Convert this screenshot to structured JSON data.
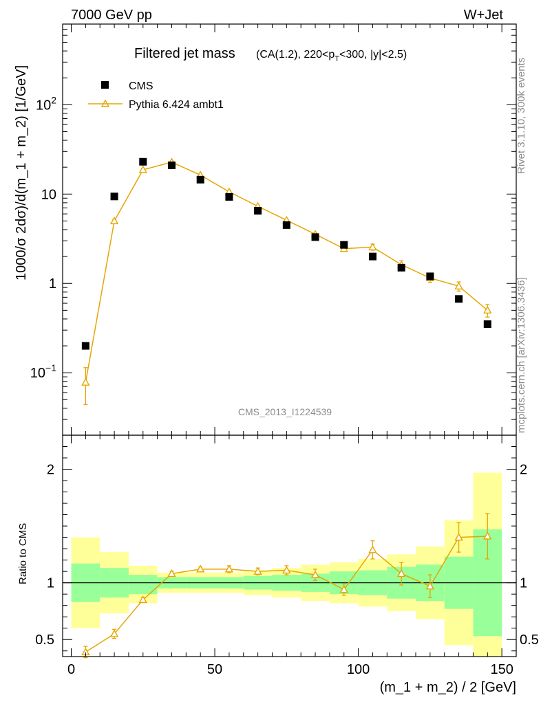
{
  "header": {
    "left": "7000 GeV pp",
    "right": "W+Jet"
  },
  "side_labels": {
    "rivet": "Rivet 3.1.10,  300k events",
    "mcplots": "mcplots.cern.ch [arXiv:1306.3436]"
  },
  "watermark": "CMS_2013_I1224539",
  "colors": {
    "mc": "#e6a500",
    "band_inner": "#99ff99",
    "band_outer": "#ffff99",
    "data": "#000000"
  },
  "chart_data": [
    {
      "type": "scatter",
      "panel": "main",
      "title_main": "Filtered jet mass",
      "title_sub": "(CA(1.2), 220<p_T<300, |y|<2.5)",
      "ylabel": "1000/σ 2dσ)/d(m_1 + m_2) [1/GeV]",
      "xlim": [
        -3,
        155
      ],
      "ylim": [
        0.02,
        800
      ],
      "yscale": "log",
      "y_tick_labels": [
        "10^-1",
        "1",
        "10",
        "10^2"
      ],
      "legend": {
        "placement": "top-left",
        "entries": [
          "CMS",
          "Pythia 6.424 ambt1"
        ]
      },
      "series": [
        {
          "name": "CMS",
          "marker": "square",
          "x": [
            5,
            15,
            25,
            35,
            45,
            55,
            65,
            75,
            85,
            95,
            105,
            115,
            125,
            135,
            145
          ],
          "y": [
            0.2,
            9.4,
            23,
            21,
            14.5,
            9.3,
            6.5,
            4.5,
            3.3,
            2.7,
            2.0,
            1.5,
            1.2,
            0.67,
            0.35
          ]
        },
        {
          "name": "Pythia 6.424 ambt1",
          "marker": "open-triangle",
          "x": [
            5,
            15,
            25,
            35,
            45,
            55,
            65,
            75,
            85,
            95,
            105,
            115,
            125,
            135,
            145
          ],
          "y": [
            0.078,
            5.0,
            18.7,
            22.8,
            16.3,
            10.6,
            7.3,
            5.1,
            3.55,
            2.45,
            2.55,
            1.62,
            1.15,
            0.93,
            0.5
          ],
          "yerr_low": [
            0.034,
            0.2,
            0.5,
            0.6,
            0.5,
            0.3,
            0.2,
            0.15,
            0.12,
            0.12,
            0.2,
            0.17,
            0.12,
            0.11,
            0.08
          ],
          "yerr_high": [
            0.036,
            0.2,
            0.5,
            0.6,
            0.5,
            0.3,
            0.2,
            0.15,
            0.12,
            0.12,
            0.2,
            0.17,
            0.12,
            0.11,
            0.08
          ]
        }
      ]
    },
    {
      "type": "line",
      "panel": "ratio",
      "ylabel": "Ratio to CMS",
      "xlabel": "(m_1 + m_2) / 2 [GeV]",
      "xlim": [
        -3,
        155
      ],
      "ylim": [
        0.35,
        2.3
      ],
      "x_ticks": [
        0,
        50,
        100,
        150
      ],
      "y_ticks": [
        0.5,
        1,
        2
      ],
      "bins": [
        [
          0,
          10
        ],
        [
          10,
          20
        ],
        [
          20,
          30
        ],
        [
          30,
          40
        ],
        [
          40,
          50
        ],
        [
          50,
          60
        ],
        [
          60,
          70
        ],
        [
          70,
          80
        ],
        [
          80,
          90
        ],
        [
          90,
          100
        ],
        [
          100,
          110
        ],
        [
          110,
          120
        ],
        [
          120,
          130
        ],
        [
          130,
          140
        ],
        [
          140,
          150
        ]
      ],
      "band_inner": {
        "low": [
          0.83,
          0.87,
          0.9,
          0.95,
          0.95,
          0.95,
          0.94,
          0.93,
          0.92,
          0.9,
          0.89,
          0.86,
          0.84,
          0.77,
          0.53
        ],
        "high": [
          1.17,
          1.13,
          1.07,
          1.05,
          1.05,
          1.05,
          1.06,
          1.07,
          1.08,
          1.1,
          1.11,
          1.14,
          1.16,
          1.23,
          1.47
        ]
      },
      "band_outer": {
        "low": [
          0.6,
          0.73,
          0.82,
          0.91,
          0.91,
          0.91,
          0.89,
          0.87,
          0.84,
          0.82,
          0.79,
          0.75,
          0.68,
          0.45,
          0.3
        ],
        "high": [
          1.4,
          1.27,
          1.15,
          1.09,
          1.09,
          1.09,
          1.11,
          1.13,
          1.16,
          1.18,
          1.21,
          1.25,
          1.32,
          1.55,
          1.97
        ]
      },
      "series": [
        {
          "name": "Pythia 6.424 ambt1",
          "x": [
            5,
            15,
            25,
            35,
            45,
            55,
            65,
            75,
            85,
            95,
            105,
            115,
            125,
            135,
            145
          ],
          "y": [
            0.39,
            0.55,
            0.85,
            1.08,
            1.12,
            1.12,
            1.1,
            1.11,
            1.07,
            0.94,
            1.29,
            1.08,
            0.97,
            1.4,
            1.41
          ],
          "yerr": [
            0.05,
            0.04,
            0.02,
            0.02,
            0.02,
            0.03,
            0.03,
            0.04,
            0.05,
            0.05,
            0.08,
            0.1,
            0.1,
            0.13,
            0.2
          ]
        }
      ]
    }
  ]
}
